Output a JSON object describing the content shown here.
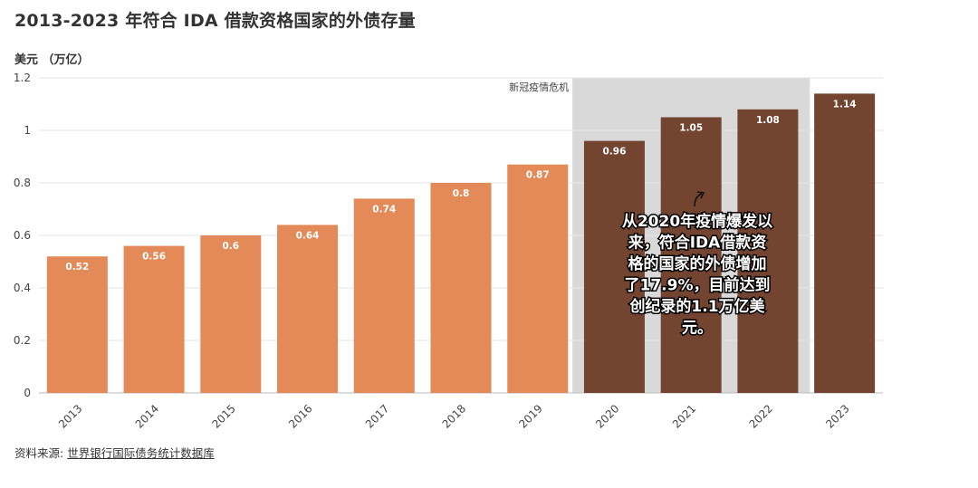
{
  "header": {
    "title": "2013-2023 年符合 IDA 借款资格国家的外债存量",
    "unit": "美元 （万亿）"
  },
  "source": {
    "prefix": "资料来源: ",
    "link": "世界银行国际债务统计数据库"
  },
  "chart_data": {
    "type": "bar",
    "title": "2013-2023 年符合 IDA 借款资格国家的外债存量",
    "ylabel": "美元 （万亿）",
    "xlabel": "",
    "categories": [
      "2013",
      "2014",
      "2015",
      "2016",
      "2017",
      "2018",
      "2019",
      "2020",
      "2021",
      "2022",
      "2023"
    ],
    "values": [
      0.52,
      0.56,
      0.6,
      0.64,
      0.74,
      0.8,
      0.87,
      0.96,
      1.05,
      1.08,
      1.14
    ],
    "labels": [
      "0.52",
      "0.56",
      "0.6",
      "0.64",
      "0.74",
      "0.8",
      "0.87",
      "0.96",
      "1.05",
      "1.08",
      "1.14"
    ],
    "ylim": [
      0,
      1.2
    ],
    "yticks": [
      0,
      0.2,
      0.4,
      0.6,
      0.8,
      1,
      1.2
    ],
    "ytick_labels": [
      "0",
      "0.2",
      "0.4",
      "0.6",
      "0.8",
      "1",
      "1.2"
    ],
    "grid": true,
    "legend": "none",
    "colors": {
      "pre_covid": "#E38A58",
      "covid": "#734430",
      "shade": "#D9D9D9",
      "grid": "#E6E6E6"
    },
    "shaded_period": {
      "from": "2020",
      "to": "2022",
      "label": "新冠疫情危机"
    },
    "annotation": {
      "lines": [
        "从2020年疫情爆发以",
        "来，符合IDA借款资",
        "格的国家的外债增加",
        "了17.9%，目前达到",
        "创纪录的1.1万亿美",
        "元。"
      ]
    }
  }
}
